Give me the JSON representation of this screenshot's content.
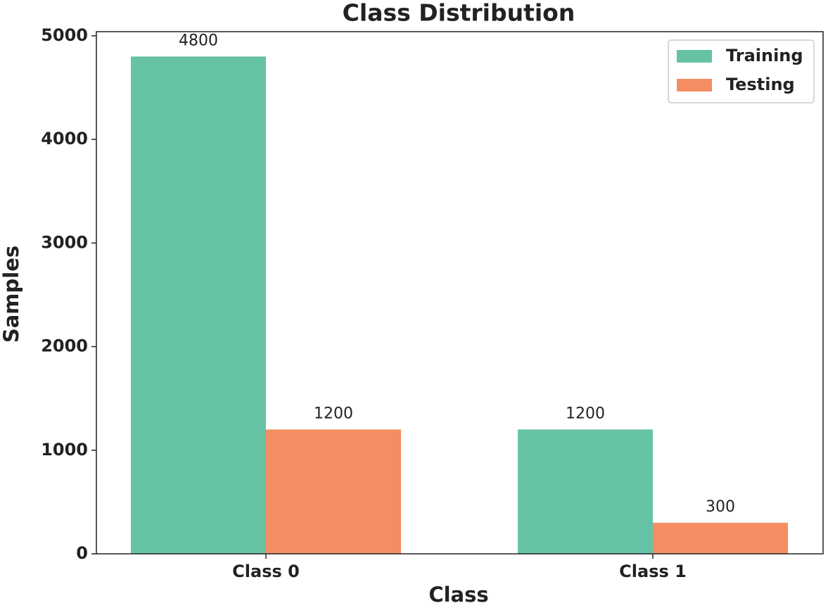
{
  "chart_data": {
    "type": "bar",
    "title": "Class Distribution",
    "x_label": "Class",
    "y_label": "Samples",
    "categories": [
      "Class 0",
      "Class 1"
    ],
    "series": [
      {
        "name": "Training",
        "color": "#66c2a5",
        "values": [
          4800,
          1200
        ]
      },
      {
        "name": "Testing",
        "color": "#f58d62",
        "values": [
          1200,
          300
        ]
      }
    ],
    "ylim": [
      0,
      5040
    ],
    "yticks": [
      0,
      1000,
      2000,
      3000,
      4000,
      5000
    ],
    "legend": "upper right",
    "grid": false,
    "data_labels": true
  }
}
